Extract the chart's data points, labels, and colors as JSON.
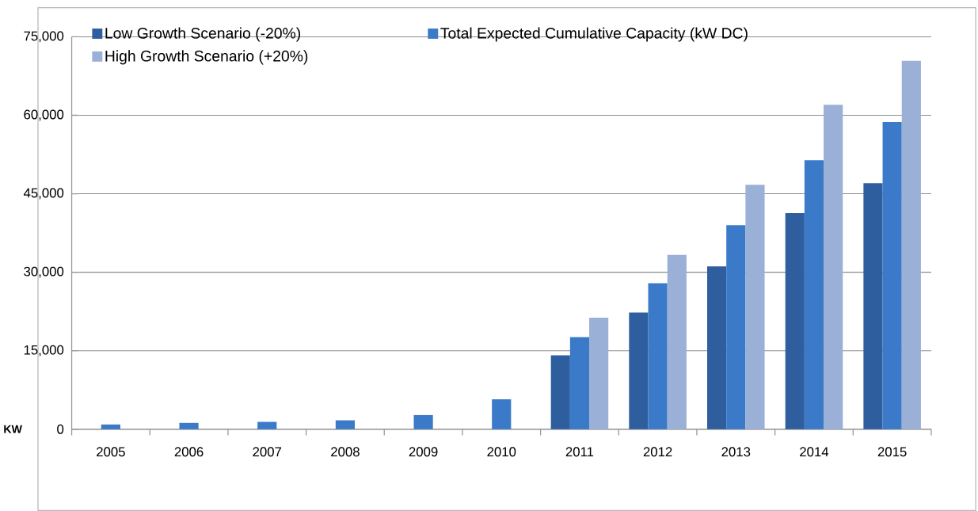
{
  "chart_data": {
    "type": "bar",
    "ylabel": "KW",
    "categories": [
      "2005",
      "2006",
      "2007",
      "2008",
      "2009",
      "2010",
      "2011",
      "2012",
      "2013",
      "2014",
      "2015"
    ],
    "series": [
      {
        "name": "Low Growth Scenario (-20%)",
        "color": "#2e5e9e",
        "values": [
          null,
          null,
          null,
          null,
          null,
          null,
          14100,
          22300,
          31100,
          41300,
          47000
        ]
      },
      {
        "name": "Total Expected Cumulative Capacity (kW DC)",
        "color": "#3a7ac8",
        "values": [
          900,
          1200,
          1400,
          1700,
          2700,
          5700,
          17600,
          27900,
          39000,
          51400,
          58700
        ]
      },
      {
        "name": "High Growth Scenario (+20%)",
        "color": "#9bb0d6",
        "values": [
          null,
          null,
          null,
          null,
          null,
          null,
          21300,
          33300,
          46700,
          62000,
          70400
        ]
      }
    ],
    "ylim": [
      0,
      75000
    ],
    "yticks": [
      {
        "value": 0,
        "label": "0"
      },
      {
        "value": 15000,
        "label": "15,000"
      },
      {
        "value": 30000,
        "label": "30,000"
      },
      {
        "value": 45000,
        "label": "45,000"
      },
      {
        "value": 60000,
        "label": "60,000"
      },
      {
        "value": 75000,
        "label": "75,000"
      }
    ],
    "grid": "y",
    "legend": "top left"
  }
}
